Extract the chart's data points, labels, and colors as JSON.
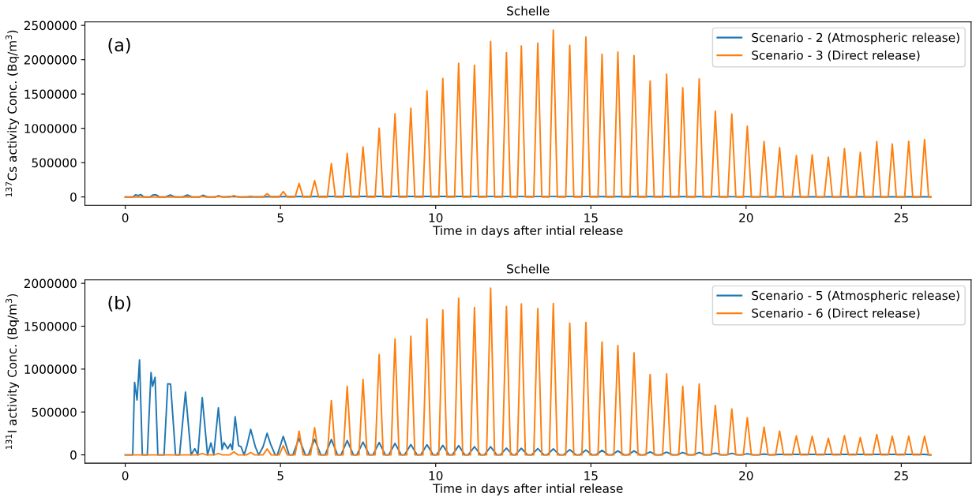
{
  "chart_data": [
    {
      "type": "line",
      "title": "Schelle",
      "xlabel": "Time in days after intial release",
      "ylabel": "$^{137}$Cs activity Conc. (Bq/m$^{3}$)",
      "annotations": [
        "(a)"
      ],
      "xlim": [
        -1.3,
        27.25
      ],
      "xticks": [
        0,
        5,
        10,
        15,
        20,
        25
      ],
      "ylim": [
        -121000,
        2551000
      ],
      "yticks": [
        0,
        500000,
        1000000,
        1500000,
        2000000,
        2500000
      ],
      "grid": false,
      "legend": "top right",
      "marker": "none",
      "line_style": "solid",
      "series": [
        {
          "name": "Scenario - 2 (Atmospheric release)",
          "color": "#1f77b4",
          "x": [
            0,
            0.25,
            0.33,
            0.42,
            0.5,
            0.6,
            0.8,
            0.9,
            1.0,
            1.1,
            1.3,
            1.45,
            1.6,
            1.85,
            2.0,
            2.15,
            2.4,
            2.5,
            2.65,
            2.9,
            3.0,
            3.15,
            3.5,
            3.7,
            5.0,
            7.5,
            10.0,
            12.5,
            15.0,
            17.5,
            20.0,
            22.5,
            25.95
          ],
          "values": [
            0,
            0,
            30000,
            20000,
            35000,
            0,
            0,
            30000,
            30000,
            0,
            0,
            30000,
            0,
            0,
            28000,
            0,
            0,
            25000,
            0,
            0,
            18000,
            0,
            8000,
            0,
            5000,
            8000,
            8000,
            6000,
            6000,
            5000,
            3000,
            2000,
            2000
          ]
        },
        {
          "name": "Scenario - 3 (Direct release)",
          "color": "#ff7f0e",
          "x": [
            0,
            2.35,
            2.48,
            2.61,
            2.87,
            3.0,
            3.13,
            3.37,
            3.5,
            3.63,
            3.91,
            4.04,
            4.17,
            4.44,
            4.57,
            4.7,
            4.96,
            5.09,
            5.22,
            5.47,
            5.6,
            5.73,
            5.97,
            6.1,
            6.23,
            6.51,
            6.64,
            6.77,
            7.02,
            7.15,
            7.28,
            7.53,
            7.66,
            7.79,
            8.05,
            8.18,
            8.31,
            8.56,
            8.69,
            8.82,
            9.07,
            9.2,
            9.33,
            9.59,
            9.72,
            9.85,
            10.1,
            10.23,
            10.36,
            10.61,
            10.74,
            10.87,
            11.12,
            11.25,
            11.38,
            11.64,
            11.77,
            11.9,
            12.15,
            12.28,
            12.41,
            12.63,
            12.76,
            12.89,
            13.16,
            13.29,
            13.42,
            13.66,
            13.79,
            13.92,
            14.19,
            14.32,
            14.45,
            14.71,
            14.84,
            14.97,
            15.23,
            15.36,
            15.49,
            15.74,
            15.87,
            16.0,
            16.26,
            16.39,
            16.52,
            16.78,
            16.91,
            17.04,
            17.31,
            17.44,
            17.57,
            17.83,
            17.96,
            18.09,
            18.36,
            18.49,
            18.62,
            18.88,
            19.01,
            19.14,
            19.41,
            19.54,
            19.67,
            19.91,
            20.04,
            20.17,
            20.45,
            20.58,
            20.71,
            20.95,
            21.08,
            21.21,
            21.49,
            21.62,
            21.75,
            22.0,
            22.13,
            22.26,
            22.52,
            22.65,
            22.78,
            23.04,
            23.17,
            23.3,
            23.55,
            23.68,
            23.81,
            24.08,
            24.21,
            24.34,
            24.58,
            24.71,
            24.84,
            25.11,
            25.24,
            25.37,
            25.62,
            25.75,
            25.88,
            25.95
          ],
          "values": [
            0,
            0,
            8000,
            0,
            0,
            8000,
            0,
            0,
            20000,
            0,
            0,
            12000,
            0,
            0,
            49000,
            0,
            0,
            78000,
            0,
            0,
            196000,
            0,
            0,
            237000,
            0,
            0,
            487000,
            0,
            0,
            634000,
            0,
            0,
            728000,
            0,
            0,
            1002000,
            0,
            0,
            1211000,
            0,
            0,
            1292000,
            0,
            0,
            1546000,
            0,
            0,
            1726000,
            0,
            0,
            1947000,
            0,
            0,
            1918000,
            0,
            0,
            2266000,
            0,
            0,
            2102000,
            0,
            0,
            2200000,
            0,
            0,
            2240000,
            0,
            0,
            2430000,
            0,
            0,
            2210000,
            0,
            0,
            2330000,
            0,
            0,
            2080000,
            0,
            0,
            2110000,
            0,
            0,
            2060000,
            0,
            0,
            1690000,
            0,
            0,
            1790000,
            0,
            0,
            1590000,
            0,
            0,
            1720000,
            0,
            0,
            1250000,
            0,
            0,
            1210000,
            0,
            0,
            1030000,
            0,
            0,
            806000,
            0,
            0,
            719000,
            0,
            0,
            602000,
            0,
            0,
            615000,
            0,
            0,
            581000,
            0,
            0,
            702000,
            0,
            0,
            650000,
            0,
            0,
            806000,
            0,
            0,
            771000,
            0,
            0,
            810000,
            0,
            0,
            836000,
            0,
            0
          ]
        }
      ]
    },
    {
      "type": "line",
      "title": "Schelle",
      "xlabel": "Time in days after intial release",
      "ylabel": "$^{131}$I activity Conc. (Bq/m$^{3}$)",
      "annotations": [
        "(b)"
      ],
      "xlim": [
        -1.3,
        27.25
      ],
      "xticks": [
        0,
        5,
        10,
        15,
        20,
        25
      ],
      "ylim": [
        -97000,
        2041000
      ],
      "yticks": [
        0,
        500000,
        1000000,
        1500000,
        2000000
      ],
      "grid": false,
      "legend": "top right",
      "marker": "none",
      "line_style": "solid",
      "series": [
        {
          "name": "Scenario - 5 (Atmospheric release)",
          "color": "#1f77b4",
          "x": [
            0,
            0.24,
            0.3,
            0.38,
            0.46,
            0.55,
            0.71,
            0.83,
            0.88,
            0.96,
            1.05,
            1.25,
            1.37,
            1.46,
            1.62,
            1.75,
            1.94,
            2.12,
            2.24,
            2.34,
            2.48,
            2.65,
            2.76,
            2.85,
            3.0,
            3.12,
            3.18,
            3.3,
            3.39,
            3.45,
            3.54,
            3.65,
            3.73,
            3.83,
            3.92,
            4.04,
            4.19,
            4.3,
            4.44,
            4.57,
            4.68,
            4.83,
            4.9,
            5.09,
            5.28,
            5.4,
            5.6,
            5.8,
            5.9,
            6.1,
            6.3,
            6.44,
            6.64,
            6.84,
            6.95,
            7.15,
            7.35,
            7.46,
            7.66,
            7.86,
            7.98,
            8.18,
            8.38,
            8.49,
            8.69,
            8.89,
            9.0,
            9.2,
            9.4,
            9.52,
            9.72,
            9.92,
            10.03,
            10.23,
            10.43,
            10.54,
            10.74,
            10.94,
            11.05,
            11.25,
            11.45,
            11.57,
            11.77,
            11.97,
            12.08,
            12.28,
            12.48,
            12.56,
            12.76,
            12.96,
            13.09,
            13.29,
            13.49,
            13.59,
            13.79,
            13.99,
            14.12,
            14.32,
            14.52,
            14.64,
            14.84,
            15.04,
            15.16,
            15.36,
            15.56,
            15.67,
            15.87,
            16.07,
            16.19,
            16.39,
            16.59,
            16.71,
            16.91,
            17.11,
            17.24,
            17.44,
            17.64,
            17.76,
            17.96,
            18.16,
            18.29,
            18.49,
            18.69,
            18.81,
            19.01,
            19.21,
            19.34,
            19.54,
            19.74,
            19.84,
            20.04,
            20.24,
            20.38,
            20.58,
            20.78,
            21.08,
            21.62,
            22.13,
            22.65,
            23.17,
            23.68,
            24.21,
            24.71,
            25.24,
            25.75,
            25.95
          ],
          "values": [
            0,
            0,
            846000,
            640000,
            1108000,
            0,
            0,
            961000,
            800000,
            905000,
            0,
            0,
            830000,
            824000,
            0,
            0,
            732000,
            0,
            72000,
            0,
            667000,
            0,
            140000,
            0,
            549000,
            62000,
            144000,
            72000,
            127000,
            60000,
            444000,
            108000,
            95000,
            0,
            108000,
            297000,
            95000,
            0,
            95000,
            252000,
            127000,
            0,
            0,
            216000,
            0,
            0,
            193000,
            0,
            0,
            183000,
            0,
            0,
            180000,
            0,
            0,
            167000,
            0,
            0,
            150000,
            0,
            0,
            144000,
            0,
            0,
            134000,
            0,
            0,
            121000,
            0,
            0,
            118000,
            0,
            0,
            111000,
            0,
            0,
            108000,
            0,
            0,
            95000,
            0,
            0,
            95000,
            0,
            0,
            78000,
            0,
            0,
            77000,
            0,
            0,
            74000,
            0,
            0,
            70000,
            0,
            0,
            60000,
            0,
            0,
            56000,
            0,
            0,
            53000,
            0,
            0,
            46000,
            0,
            0,
            46000,
            0,
            0,
            35000,
            0,
            0,
            32000,
            0,
            0,
            28000,
            0,
            0,
            28000,
            0,
            0,
            21000,
            0,
            0,
            18000,
            0,
            0,
            14000,
            0,
            0,
            10000,
            0,
            5000,
            5000,
            5000,
            5000,
            5000,
            5000,
            5000,
            5000,
            5000,
            5000,
            0
          ]
        },
        {
          "name": "Scenario - 6 (Direct release)",
          "color": "#ff7f0e",
          "x": [
            0,
            2.35,
            2.48,
            2.61,
            2.87,
            3.0,
            3.13,
            3.37,
            3.5,
            3.63,
            3.91,
            4.04,
            4.17,
            4.44,
            4.57,
            4.7,
            4.96,
            5.09,
            5.22,
            5.47,
            5.6,
            5.73,
            5.97,
            6.1,
            6.23,
            6.51,
            6.64,
            6.77,
            7.02,
            7.15,
            7.28,
            7.53,
            7.66,
            7.79,
            8.05,
            8.18,
            8.31,
            8.56,
            8.69,
            8.82,
            9.07,
            9.2,
            9.33,
            9.59,
            9.72,
            9.85,
            10.1,
            10.23,
            10.36,
            10.61,
            10.74,
            10.87,
            11.12,
            11.25,
            11.38,
            11.64,
            11.77,
            11.9,
            12.15,
            12.28,
            12.41,
            12.63,
            12.76,
            12.89,
            13.16,
            13.29,
            13.42,
            13.66,
            13.79,
            13.92,
            14.19,
            14.32,
            14.45,
            14.71,
            14.84,
            14.97,
            15.23,
            15.36,
            15.49,
            15.74,
            15.87,
            16.0,
            16.26,
            16.39,
            16.52,
            16.78,
            16.91,
            17.04,
            17.31,
            17.44,
            17.57,
            17.83,
            17.96,
            18.09,
            18.36,
            18.49,
            18.62,
            18.88,
            19.01,
            19.14,
            19.41,
            19.54,
            19.67,
            19.91,
            20.04,
            20.17,
            20.45,
            20.58,
            20.71,
            20.95,
            21.08,
            21.21,
            21.49,
            21.62,
            21.75,
            22.0,
            22.13,
            22.26,
            22.52,
            22.65,
            22.78,
            23.04,
            23.17,
            23.3,
            23.55,
            23.68,
            23.81,
            24.08,
            24.21,
            24.34,
            24.58,
            24.71,
            24.84,
            25.11,
            25.24,
            25.37,
            25.62,
            25.75,
            25.88,
            25.95
          ],
          "values": [
            0,
            0,
            16000,
            0,
            0,
            16000,
            0,
            0,
            36000,
            0,
            0,
            29000,
            0,
            0,
            69000,
            0,
            0,
            108000,
            0,
            0,
            278000,
            0,
            0,
            317000,
            0,
            0,
            634000,
            0,
            0,
            800000,
            0,
            0,
            879000,
            0,
            0,
            1170000,
            0,
            0,
            1350000,
            0,
            0,
            1382000,
            0,
            0,
            1585000,
            0,
            0,
            1690000,
            0,
            0,
            1827000,
            0,
            0,
            1719000,
            0,
            0,
            1944000,
            0,
            0,
            1730000,
            0,
            0,
            1760000,
            0,
            0,
            1704000,
            0,
            0,
            1764000,
            0,
            0,
            1535000,
            0,
            0,
            1545000,
            0,
            0,
            1316000,
            0,
            0,
            1274000,
            0,
            0,
            1190000,
            0,
            0,
            936000,
            0,
            0,
            943000,
            0,
            0,
            799000,
            0,
            0,
            827000,
            0,
            0,
            577000,
            0,
            0,
            535000,
            0,
            0,
            433000,
            0,
            0,
            324000,
            0,
            0,
            278000,
            0,
            0,
            222000,
            0,
            0,
            218000,
            0,
            0,
            194000,
            0,
            0,
            225000,
            0,
            0,
            201000,
            0,
            0,
            239000,
            0,
            0,
            218000,
            0,
            0,
            218000,
            0,
            0,
            218000,
            0,
            0
          ]
        }
      ]
    }
  ]
}
